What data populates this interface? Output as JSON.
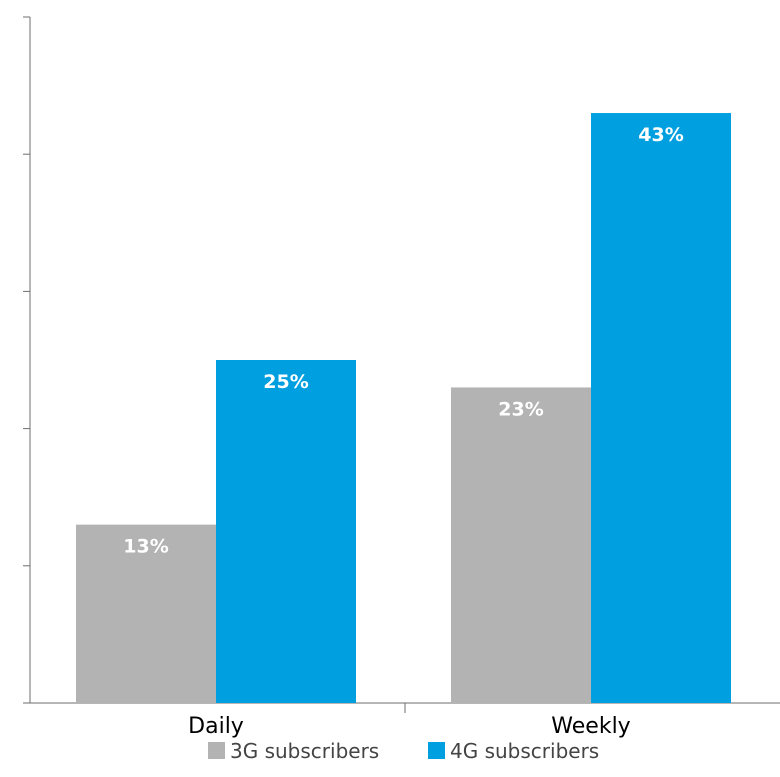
{
  "chart_data": {
    "type": "bar",
    "categories": [
      "Daily",
      "Weekly"
    ],
    "series": [
      {
        "name": "3G subscribers",
        "values": [
          13,
          23
        ],
        "labels": [
          "13%",
          "23%"
        ],
        "color": "#b3b3b3"
      },
      {
        "name": "4G subscribers",
        "values": [
          25,
          43
        ],
        "labels": [
          "25%",
          "43%"
        ],
        "color": "#009fe0"
      }
    ],
    "ylim": [
      0,
      50
    ],
    "grid": false,
    "legend": "bottom-center"
  }
}
